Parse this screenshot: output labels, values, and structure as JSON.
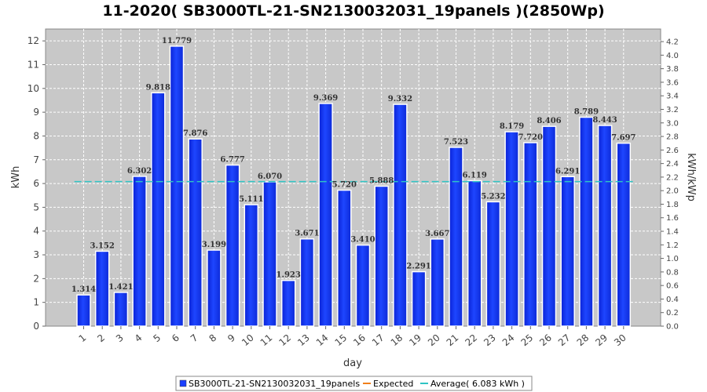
{
  "chart_data": {
    "type": "bar",
    "title": "11-2020( SB3000TL-21-SN2130032031_19panels )(2850Wp)",
    "xlabel": "day",
    "ylabel": "kWh",
    "y2label": "kWh/kWp",
    "ylim": [
      0,
      12.5
    ],
    "y2lim": [
      0,
      4.386
    ],
    "yticks": [
      "0",
      "1",
      "2",
      "3",
      "4",
      "5",
      "6",
      "7",
      "8",
      "9",
      "10",
      "11",
      "12"
    ],
    "y2ticks": [
      "0.0",
      "0.2",
      "0.4",
      "0.6",
      "0.8",
      "1.0",
      "1.2",
      "1.4",
      "1.6",
      "1.8",
      "2.0",
      "2.2",
      "2.4",
      "2.6",
      "2.8",
      "3.0",
      "3.2",
      "3.4",
      "3.6",
      "3.8",
      "4.0",
      "4.2"
    ],
    "categories": [
      "1",
      "2",
      "3",
      "4",
      "5",
      "6",
      "7",
      "8",
      "9",
      "10",
      "11",
      "12",
      "13",
      "14",
      "15",
      "16",
      "17",
      "18",
      "19",
      "20",
      "21",
      "22",
      "23",
      "24",
      "25",
      "26",
      "27",
      "28",
      "29",
      "30"
    ],
    "series": [
      {
        "name": "SB3000TL-21-SN2130032031_19panels",
        "values": [
          1.314,
          3.152,
          1.421,
          6.302,
          9.818,
          11.779,
          7.876,
          3.199,
          6.777,
          5.111,
          6.07,
          1.923,
          3.671,
          9.369,
          5.72,
          3.41,
          5.888,
          9.332,
          2.291,
          3.667,
          7.523,
          6.119,
          5.232,
          8.179,
          7.72,
          8.406,
          6.291,
          8.789,
          8.443,
          7.697
        ],
        "labels": [
          "1.314",
          "3.152",
          "1.421",
          "6.302",
          "9.818",
          "11.779",
          "7.876",
          "3.199",
          "6.777",
          "5.111",
          "6.070",
          "1.923",
          "3.671",
          "9.369",
          "5.720",
          "3.410",
          "5.888",
          "9.332",
          "2.291",
          "3.667",
          "7.523",
          "6.119",
          "5.232",
          "8.179",
          "7.720",
          "8.406",
          "6.291",
          "8.789",
          "8.443",
          "7.697"
        ],
        "color": "#1a3fff"
      }
    ],
    "average": 6.083,
    "legend": {
      "placement": "bottom",
      "items": [
        {
          "label": "SB3000TL-21-SN2130032031_19panels",
          "color": "#1a3fff",
          "kind": "box"
        },
        {
          "label": "Expected",
          "color": "#f07f1a",
          "kind": "line"
        },
        {
          "label": "Average( 6.083 kWh )",
          "color": "#2fc4c4",
          "kind": "line"
        }
      ]
    },
    "grid": true
  }
}
